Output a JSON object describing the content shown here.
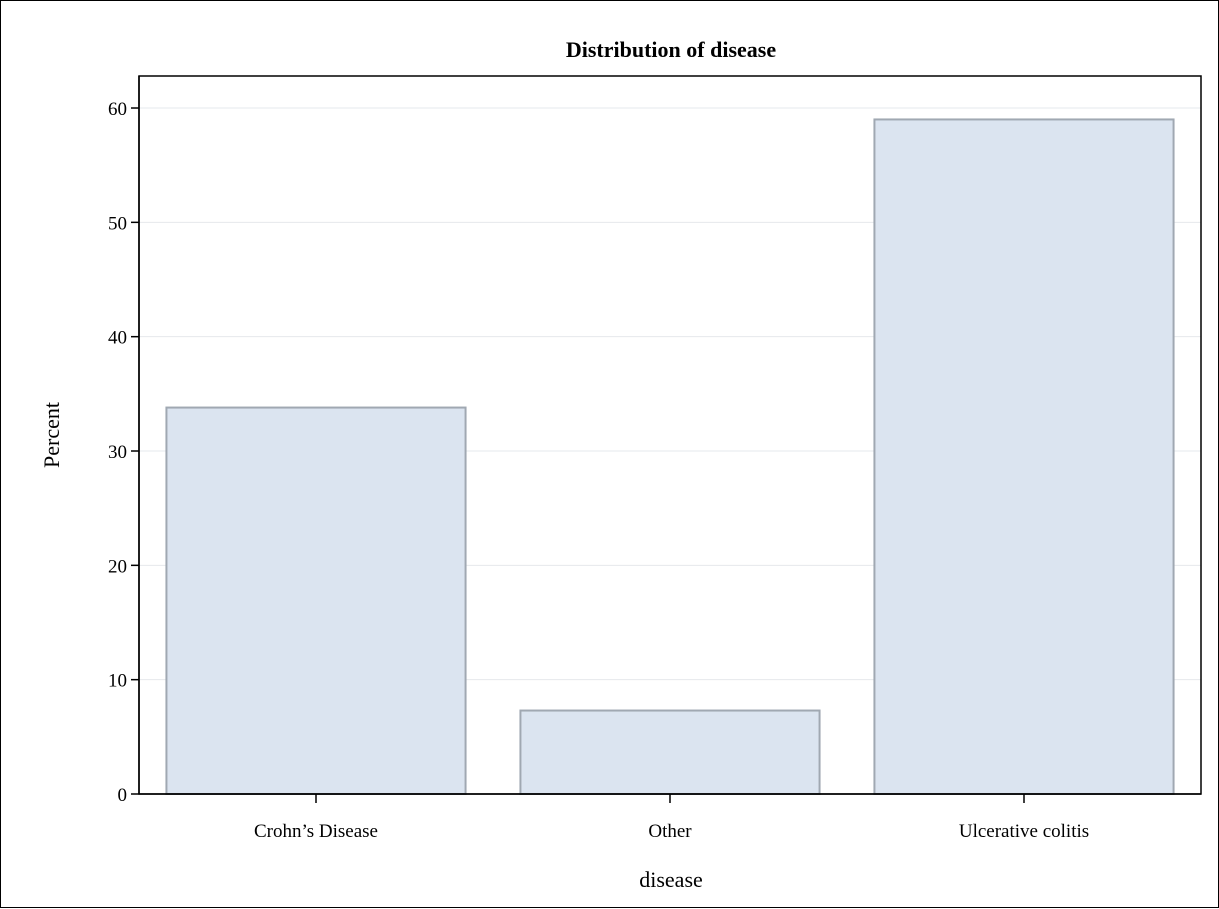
{
  "chart_data": {
    "type": "bar",
    "title": "Distribution of disease",
    "xlabel": "disease",
    "ylabel": "Percent",
    "categories": [
      "Crohn’s Disease",
      "Other",
      "Ulcerative colitis"
    ],
    "values": [
      33.8,
      7.3,
      59.0
    ],
    "ylim": [
      0,
      60
    ],
    "yticks": [
      0,
      10,
      20,
      30,
      40,
      50,
      60
    ],
    "grid": true,
    "legend": "none"
  },
  "colors": {
    "bar_fill": "#dbe4f0",
    "bar_stroke": "#a0a8b2",
    "grid": "#e6e8ec",
    "axis": "#000000"
  }
}
